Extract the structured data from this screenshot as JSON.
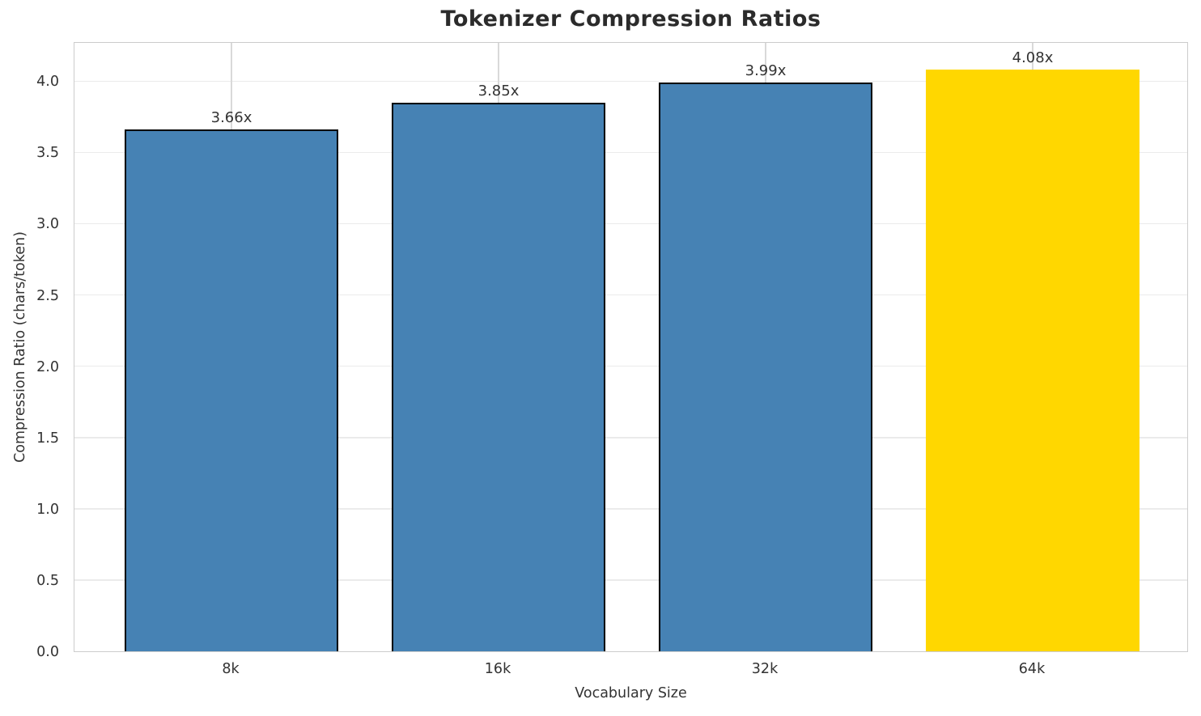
{
  "chart_data": {
    "type": "bar",
    "title": "Tokenizer Compression Ratios",
    "xlabel": "Vocabulary Size",
    "ylabel": "Compression Ratio (chars/token)",
    "categories": [
      "8k",
      "16k",
      "32k",
      "64k"
    ],
    "values": [
      3.66,
      3.85,
      3.99,
      4.08
    ],
    "bar_labels": [
      "3.66x",
      "3.85x",
      "3.99x",
      "4.08x"
    ],
    "bar_colors": [
      "#4682B4",
      "#4682B4",
      "#4682B4",
      "#FFD700"
    ],
    "bar_edges": [
      true,
      true,
      true,
      false
    ],
    "edge_color": "#000000",
    "ylim": [
      0,
      4.28
    ],
    "yticks": [
      "0.0",
      "0.5",
      "1.0",
      "1.5",
      "2.0",
      "2.5",
      "3.0",
      "3.5",
      "4.0"
    ],
    "grid": true,
    "legend_position": "none",
    "style": {
      "hgrid_color": "#ebebeb",
      "vgrid_color": "#d9d9d9",
      "spine_color": "#cccccc",
      "tick_text_color": "#333333",
      "title_color": "#2b2b2b",
      "highlight_color": "#FFD700",
      "base_color": "#4682B4"
    }
  }
}
